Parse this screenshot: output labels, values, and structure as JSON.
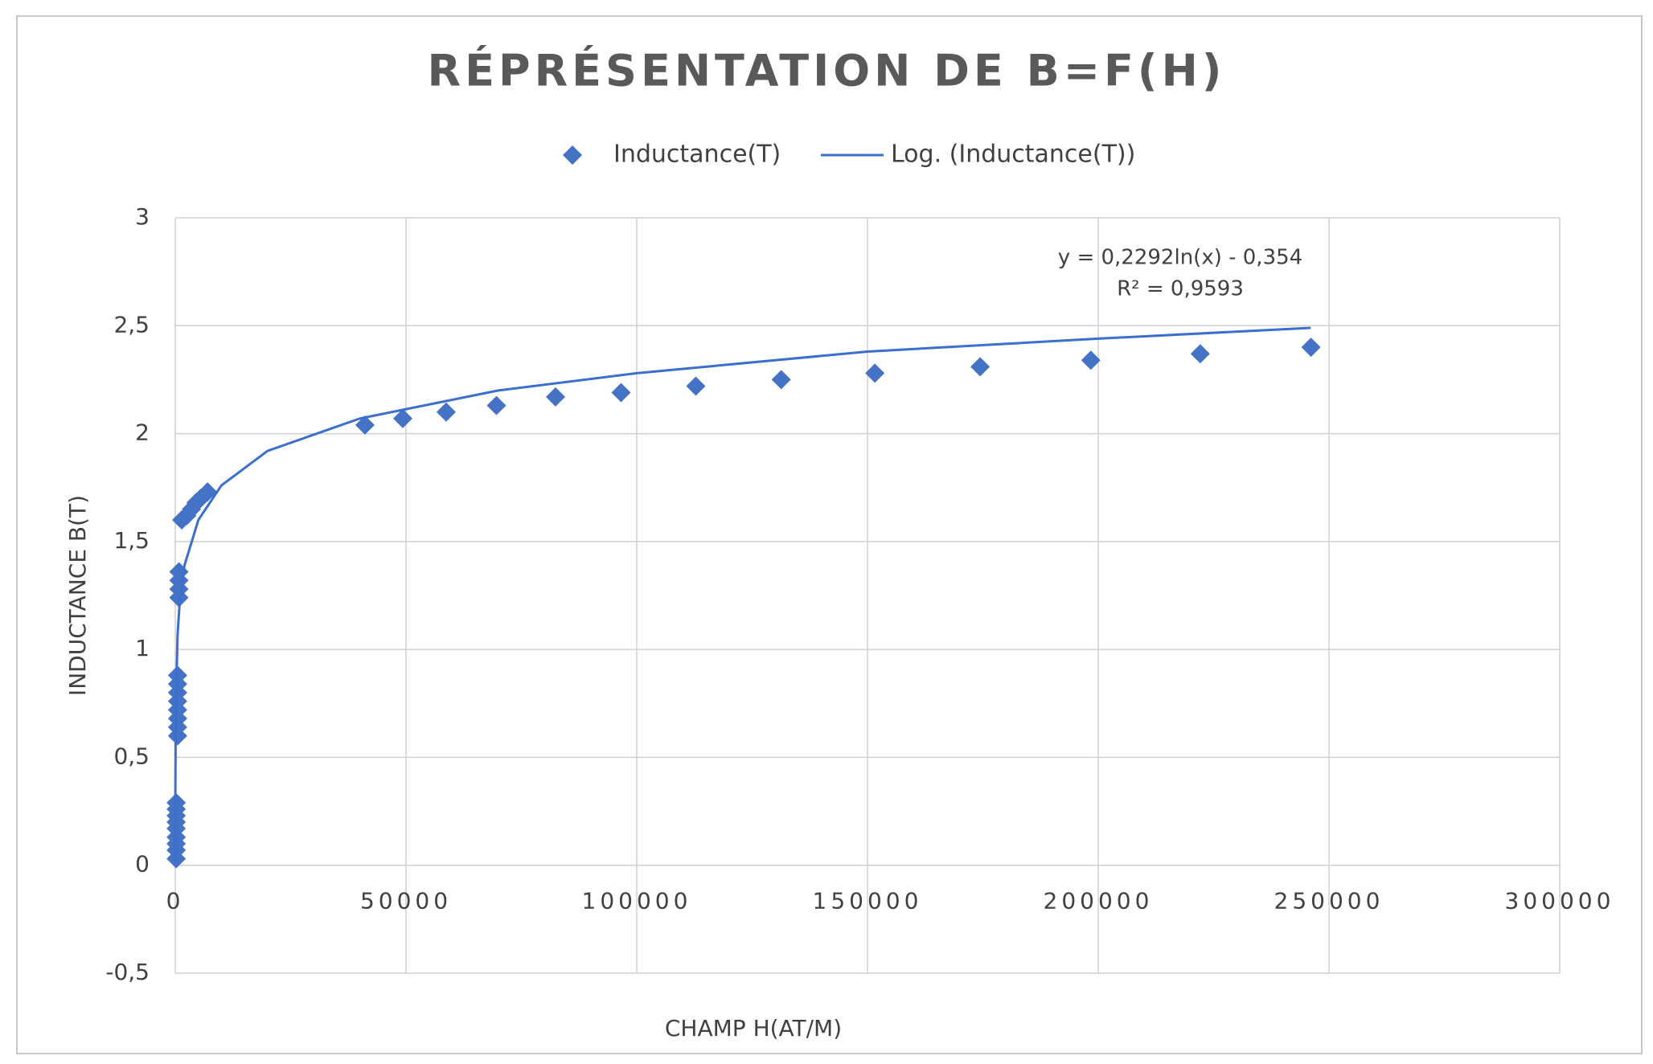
{
  "chart_data": {
    "type": "scatter",
    "title": "RÉPRÉSENTATION  DE B=F(H)",
    "x_label": "CHAMP H(AT/M)",
    "y_label": "INDUCTANCE B(T)",
    "annotations": [
      "y = 0,2292ln(x) - 0,354",
      "R² = 0,9593"
    ],
    "xlim": [
      0,
      300000
    ],
    "xticks": [
      0,
      50000,
      100000,
      150000,
      200000,
      250000,
      300000
    ],
    "ylim": [
      -0.5,
      3
    ],
    "yticks": [
      {
        "value": -0.5,
        "label": "-0,5"
      },
      0,
      {
        "value": 0.5,
        "label": "0,5"
      },
      1,
      {
        "value": 1.5,
        "label": "1,5"
      },
      2,
      {
        "value": 2.5,
        "label": "2,5"
      },
      3
    ],
    "grid": true,
    "legend": "top",
    "series": [
      {
        "name": "Inductance(T)",
        "color": "#4472c4",
        "mark": "diamond",
        "x": [
          200,
          200,
          200,
          200,
          200,
          200,
          200,
          200,
          200,
          500,
          500,
          500,
          500,
          500,
          500,
          500,
          500,
          800,
          800,
          800,
          800,
          1400,
          2500,
          3500,
          4500,
          5500,
          7000,
          41100,
          49300,
          58700,
          69600,
          82400,
          96600,
          112800,
          131300,
          151600,
          174400,
          198400,
          222100,
          246100
        ],
        "values": [
          0.03,
          0.07,
          0.1,
          0.13,
          0.17,
          0.2,
          0.23,
          0.26,
          0.29,
          0.6,
          0.64,
          0.68,
          0.72,
          0.76,
          0.8,
          0.84,
          0.88,
          1.24,
          1.28,
          1.32,
          1.36,
          1.6,
          1.62,
          1.65,
          1.68,
          1.7,
          1.73,
          2.04,
          2.07,
          2.1,
          2.13,
          2.17,
          2.19,
          2.22,
          2.25,
          2.28,
          2.31,
          2.34,
          2.37,
          2.4
        ]
      },
      {
        "name": "Log. (Inductance(T))",
        "color": "#3a6fd0",
        "mark": "line",
        "x": [
          5,
          20,
          100,
          500,
          1000,
          2000,
          5000,
          10000,
          20000,
          40000,
          70000,
          100000,
          150000,
          200000,
          246000
        ],
        "values": [
          0.015,
          0.33,
          0.7,
          1.07,
          1.23,
          1.39,
          1.6,
          1.76,
          1.92,
          2.07,
          2.2,
          2.28,
          2.38,
          2.44,
          2.49
        ]
      }
    ]
  }
}
